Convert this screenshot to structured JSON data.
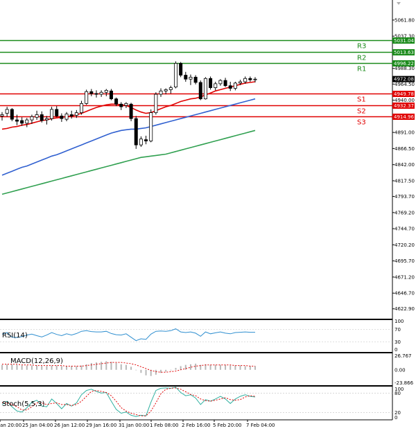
{
  "chart_data": {
    "type": "candlestick",
    "price_axis": {
      "ticks": [
        "5061.80",
        "5037.30",
        "4988.30",
        "4964.50",
        "4940.00",
        "4915.50",
        "4891.00",
        "4866.50",
        "4842.00",
        "4817.50",
        "4793.70",
        "4769.20",
        "4744.70",
        "4720.20",
        "4695.70",
        "4671.20",
        "4646.70",
        "4622.90"
      ],
      "range": [
        4610,
        5087
      ]
    },
    "current_price": "4972.08",
    "levels": [
      {
        "name": "R3",
        "value": 5031.04,
        "label": "5031.04",
        "color": "#1a8a1a"
      },
      {
        "name": "R2",
        "value": 5013.63,
        "label": "5013.63",
        "color": "#1a8a1a"
      },
      {
        "name": "R1",
        "value": 4996.22,
        "label": "4996.22",
        "color": "#1a8a1a"
      },
      {
        "name": "S1",
        "value": 4949.78,
        "label": "4949.78",
        "color": "#e00000"
      },
      {
        "name": "S2",
        "value": 4932.37,
        "label": "4932.37",
        "color": "#e00000"
      },
      {
        "name": "S3",
        "value": 4914.96,
        "label": "4914.96",
        "color": "#e00000"
      }
    ],
    "x_labels": [
      "Jan 20:00",
      "25 Jan 04:00",
      "26 Jan 12:00",
      "29 Jan 16:00",
      "31 Jan 00:00",
      "1 Feb 08:00",
      "2 Feb 16:00",
      "5 Feb 20:00",
      "7 Feb 04:00"
    ],
    "candles": [
      {
        "o": 4916,
        "h": 4922,
        "l": 4909,
        "c": 4918
      },
      {
        "o": 4920,
        "h": 4930,
        "l": 4915,
        "c": 4926
      },
      {
        "o": 4926,
        "h": 4928,
        "l": 4908,
        "c": 4911
      },
      {
        "o": 4910,
        "h": 4918,
        "l": 4902,
        "c": 4908
      },
      {
        "o": 4909,
        "h": 4914,
        "l": 4901,
        "c": 4905
      },
      {
        "o": 4905,
        "h": 4913,
        "l": 4899,
        "c": 4910
      },
      {
        "o": 4910,
        "h": 4918,
        "l": 4904,
        "c": 4915
      },
      {
        "o": 4914,
        "h": 4924,
        "l": 4910,
        "c": 4918
      },
      {
        "o": 4918,
        "h": 4923,
        "l": 4906,
        "c": 4909
      },
      {
        "o": 4910,
        "h": 4916,
        "l": 4903,
        "c": 4912
      },
      {
        "o": 4912,
        "h": 4930,
        "l": 4909,
        "c": 4926
      },
      {
        "o": 4926,
        "h": 4931,
        "l": 4914,
        "c": 4916
      },
      {
        "o": 4916,
        "h": 4920,
        "l": 4907,
        "c": 4912
      },
      {
        "o": 4911,
        "h": 4922,
        "l": 4908,
        "c": 4919
      },
      {
        "o": 4918,
        "h": 4924,
        "l": 4912,
        "c": 4916
      },
      {
        "o": 4917,
        "h": 4925,
        "l": 4913,
        "c": 4921
      },
      {
        "o": 4921,
        "h": 4939,
        "l": 4918,
        "c": 4935
      },
      {
        "o": 4935,
        "h": 4956,
        "l": 4933,
        "c": 4953
      },
      {
        "o": 4953,
        "h": 4957,
        "l": 4946,
        "c": 4950
      },
      {
        "o": 4950,
        "h": 4955,
        "l": 4944,
        "c": 4949
      },
      {
        "o": 4949,
        "h": 4955,
        "l": 4945,
        "c": 4952
      },
      {
        "o": 4952,
        "h": 4957,
        "l": 4946,
        "c": 4955
      },
      {
        "o": 4954,
        "h": 4957,
        "l": 4940,
        "c": 4942
      },
      {
        "o": 4942,
        "h": 4944,
        "l": 4931,
        "c": 4934
      },
      {
        "o": 4934,
        "h": 4937,
        "l": 4925,
        "c": 4930
      },
      {
        "o": 4932,
        "h": 4937,
        "l": 4928,
        "c": 4935
      },
      {
        "o": 4934,
        "h": 4936,
        "l": 4908,
        "c": 4912
      },
      {
        "o": 4912,
        "h": 4916,
        "l": 4866,
        "c": 4872
      },
      {
        "o": 4872,
        "h": 4885,
        "l": 4869,
        "c": 4881
      },
      {
        "o": 4880,
        "h": 4886,
        "l": 4873,
        "c": 4878
      },
      {
        "o": 4878,
        "h": 4926,
        "l": 4876,
        "c": 4921
      },
      {
        "o": 4921,
        "h": 4952,
        "l": 4918,
        "c": 4949
      },
      {
        "o": 4949,
        "h": 4958,
        "l": 4945,
        "c": 4954
      },
      {
        "o": 4954,
        "h": 4958,
        "l": 4949,
        "c": 4956
      },
      {
        "o": 4956,
        "h": 4962,
        "l": 4950,
        "c": 4959
      },
      {
        "o": 4960,
        "h": 4999,
        "l": 4958,
        "c": 4996
      },
      {
        "o": 4996,
        "h": 4998,
        "l": 4975,
        "c": 4978
      },
      {
        "o": 4978,
        "h": 4983,
        "l": 4968,
        "c": 4972
      },
      {
        "o": 4972,
        "h": 4979,
        "l": 4963,
        "c": 4975
      },
      {
        "o": 4975,
        "h": 4978,
        "l": 4964,
        "c": 4967
      },
      {
        "o": 4967,
        "h": 4970,
        "l": 4940,
        "c": 4942
      },
      {
        "o": 4942,
        "h": 4975,
        "l": 4941,
        "c": 4973
      },
      {
        "o": 4973,
        "h": 4976,
        "l": 4956,
        "c": 4959
      },
      {
        "o": 4959,
        "h": 4968,
        "l": 4955,
        "c": 4965
      },
      {
        "o": 4965,
        "h": 4972,
        "l": 4962,
        "c": 4970
      },
      {
        "o": 4970,
        "h": 4974,
        "l": 4960,
        "c": 4962
      },
      {
        "o": 4962,
        "h": 4968,
        "l": 4954,
        "c": 4958
      },
      {
        "o": 4958,
        "h": 4968,
        "l": 4955,
        "c": 4966
      },
      {
        "o": 4966,
        "h": 4971,
        "l": 4963,
        "c": 4968
      },
      {
        "o": 4968,
        "h": 4976,
        "l": 4965,
        "c": 4973
      },
      {
        "o": 4973,
        "h": 4976,
        "l": 4968,
        "c": 4971
      },
      {
        "o": 4971,
        "h": 4975,
        "l": 4967,
        "c": 4972
      }
    ],
    "ma_series": [
      {
        "color": "#e00000",
        "values": [
          4896,
          4897,
          4899,
          4900,
          4902,
          4903,
          4905,
          4907,
          4909,
          4910,
          4912,
          4913,
          4914,
          4915,
          4916,
          4918,
          4920,
          4923,
          4926,
          4929,
          4931,
          4933,
          4934,
          4934,
          4933,
          4932,
          4929,
          4925,
          4922,
          4920,
          4921,
          4924,
          4927,
          4930,
          4932,
          4935,
          4938,
          4940,
          4942,
          4943,
          4945,
          4948,
          4951,
          4954,
          4956,
          4958,
          4960,
          4962,
          4964,
          4966,
          4967,
          4968
        ]
      },
      {
        "color": "#3060d0",
        "values": [
          4826,
          4829,
          4832,
          4835,
          4838,
          4840,
          4843,
          4846,
          4849,
          4852,
          4855,
          4857,
          4860,
          4863,
          4866,
          4869,
          4872,
          4875,
          4878,
          4881,
          4884,
          4887,
          4890,
          4892,
          4894,
          4895,
          4896,
          4896,
          4897,
          4898,
          4900,
          4902,
          4904,
          4906,
          4908,
          4910,
          4912,
          4914,
          4916,
          4918,
          4920,
          4922,
          4924,
          4926,
          4928,
          4930,
          4932,
          4934,
          4936,
          4938,
          4940,
          4942
        ]
      },
      {
        "color": "#30a050",
        "values": [
          4797,
          4799,
          4801,
          4803,
          4805,
          4807,
          4809,
          4811,
          4813,
          4815,
          4817,
          4819,
          4821,
          4823,
          4825,
          4827,
          4829,
          4831,
          4833,
          4835,
          4837,
          4839,
          4841,
          4843,
          4845,
          4847,
          4849,
          4851,
          4853,
          4854,
          4855,
          4856,
          4857,
          4858,
          4860,
          4862,
          4864,
          4866,
          4868,
          4870,
          4872,
          4874,
          4876,
          4878,
          4880,
          4882,
          4884,
          4886,
          4888,
          4890,
          4892,
          4894
        ]
      }
    ],
    "rsi": {
      "label": "RSI(14)",
      "ticks": [
        "100",
        "70",
        "30",
        "0"
      ],
      "values": [
        55,
        60,
        45,
        44,
        47,
        52,
        55,
        50,
        46,
        52,
        60,
        54,
        50,
        56,
        52,
        57,
        64,
        66,
        63,
        62,
        62,
        64,
        57,
        53,
        52,
        56,
        45,
        34,
        40,
        38,
        55,
        64,
        65,
        64,
        66,
        72,
        62,
        60,
        62,
        58,
        48,
        62,
        56,
        59,
        62,
        58,
        56,
        60,
        61,
        62,
        61,
        61
      ]
    },
    "macd": {
      "label": "MACD(12,26,9)",
      "ticks": [
        "26.767",
        "0.00",
        "-23.866"
      ],
      "hist": [
        8,
        9,
        9,
        8,
        7,
        7,
        7,
        7,
        6,
        6,
        7,
        7,
        6,
        6,
        6,
        6,
        7,
        9,
        11,
        12,
        13,
        14,
        13,
        11,
        9,
        8,
        5,
        0,
        -5,
        -9,
        -10,
        -8,
        -5,
        -3,
        -1,
        3,
        6,
        8,
        9,
        10,
        8,
        9,
        8,
        8,
        8,
        8,
        7,
        7,
        7,
        6,
        6,
        6
      ],
      "signal": [
        9,
        9,
        9,
        9,
        8,
        8,
        8,
        7,
        7,
        7,
        7,
        7,
        7,
        6,
        6,
        6,
        6,
        7,
        8,
        9,
        10,
        11,
        12,
        12,
        12,
        11,
        10,
        8,
        5,
        2,
        -1,
        -3,
        -4,
        -4,
        -3,
        -2,
        0,
        2,
        4,
        6,
        7,
        8,
        8,
        8,
        8,
        8,
        8,
        7,
        7,
        7,
        6,
        6
      ]
    },
    "stoch": {
      "label": "Stoch(5,5,3)",
      "ticks": [
        "100",
        "80",
        "20",
        "0"
      ],
      "k": [
        45,
        55,
        38,
        25,
        22,
        35,
        52,
        58,
        40,
        38,
        62,
        48,
        32,
        48,
        40,
        50,
        75,
        88,
        92,
        85,
        80,
        82,
        55,
        30,
        18,
        22,
        12,
        8,
        12,
        10,
        52,
        88,
        95,
        96,
        95,
        98,
        82,
        72,
        75,
        65,
        45,
        60,
        55,
        62,
        70,
        62,
        48,
        62,
        70,
        75,
        70,
        68
      ],
      "d": [
        50,
        50,
        45,
        38,
        28,
        28,
        38,
        50,
        50,
        45,
        48,
        50,
        45,
        45,
        42,
        45,
        55,
        70,
        85,
        88,
        85,
        82,
        72,
        55,
        35,
        25,
        18,
        14,
        10,
        10,
        25,
        50,
        78,
        92,
        95,
        96,
        92,
        84,
        76,
        72,
        62,
        57,
        55,
        58,
        62,
        66,
        60,
        58,
        60,
        68,
        72,
        70
      ]
    }
  }
}
